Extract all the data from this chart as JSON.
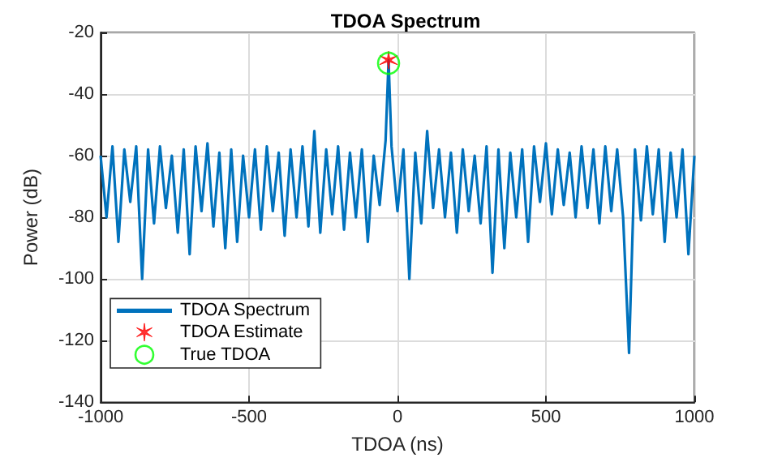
{
  "chart_data": {
    "type": "line",
    "title": "TDOA Spectrum",
    "xlabel": "TDOA (ns)",
    "ylabel": "Power (dB)",
    "xlim": [
      -1000,
      1000
    ],
    "xticks": [
      -1000,
      -500,
      0,
      500,
      1000
    ],
    "ylim": [
      -140,
      -20
    ],
    "yticks": [
      -140,
      -120,
      -100,
      -80,
      -60,
      -40,
      -20
    ],
    "grid": true,
    "legend": "bottom left",
    "series": [
      {
        "name": "TDOA Spectrum",
        "type": "line",
        "color": "#0072bd",
        "marker": "none",
        "line_style": "solid",
        "x": [
          -1000,
          -980,
          -960,
          -940,
          -920,
          -900,
          -880,
          -860,
          -840,
          -820,
          -800,
          -780,
          -760,
          -740,
          -720,
          -700,
          -680,
          -660,
          -640,
          -620,
          -600,
          -580,
          -560,
          -540,
          -520,
          -500,
          -480,
          -460,
          -440,
          -420,
          -400,
          -380,
          -360,
          -340,
          -320,
          -300,
          -280,
          -260,
          -240,
          -220,
          -200,
          -180,
          -160,
          -140,
          -120,
          -100,
          -80,
          -60,
          -40,
          -30,
          -20,
          0,
          20,
          40,
          60,
          80,
          100,
          120,
          140,
          160,
          180,
          200,
          220,
          240,
          260,
          280,
          300,
          320,
          340,
          360,
          380,
          400,
          420,
          440,
          460,
          480,
          500,
          520,
          540,
          560,
          580,
          600,
          620,
          640,
          660,
          680,
          700,
          720,
          740,
          760,
          780,
          800,
          820,
          840,
          860,
          880,
          900,
          920,
          940,
          960,
          980,
          1000
        ],
        "values": [
          -60,
          -80,
          -57,
          -88,
          -58,
          -75,
          -57,
          -100,
          -58,
          -82,
          -57,
          -77,
          -60,
          -85,
          -58,
          -92,
          -57,
          -78,
          -56,
          -83,
          -59,
          -90,
          -58,
          -88,
          -60,
          -80,
          -58,
          -84,
          -57,
          -78,
          -59,
          -86,
          -58,
          -80,
          -57,
          -83,
          -52,
          -85,
          -58,
          -79,
          -57,
          -84,
          -59,
          -80,
          -58,
          -88,
          -60,
          -76,
          -55,
          -29,
          -57,
          -78,
          -58,
          -100,
          -59,
          -82,
          -52,
          -77,
          -58,
          -80,
          -59,
          -85,
          -58,
          -78,
          -60,
          -82,
          -57,
          -98,
          -58,
          -90,
          -59,
          -80,
          -58,
          -88,
          -57,
          -75,
          -56,
          -79,
          -58,
          -76,
          -59,
          -80,
          -57,
          -77,
          -58,
          -82,
          -57,
          -78,
          -58,
          -80,
          -124,
          -58,
          -81,
          -57,
          -79,
          -58,
          -88,
          -59,
          -80,
          -58,
          -92,
          -60
        ]
      },
      {
        "name": "TDOA Estimate",
        "type": "scatter",
        "color": "#ff0000",
        "marker": "cross",
        "x": [
          -30
        ],
        "values": [
          -29
        ]
      },
      {
        "name": "True TDOA",
        "type": "scatter",
        "color": "#00ff00",
        "marker": "circle",
        "x": [
          -30
        ],
        "values": [
          -30
        ]
      }
    ]
  }
}
